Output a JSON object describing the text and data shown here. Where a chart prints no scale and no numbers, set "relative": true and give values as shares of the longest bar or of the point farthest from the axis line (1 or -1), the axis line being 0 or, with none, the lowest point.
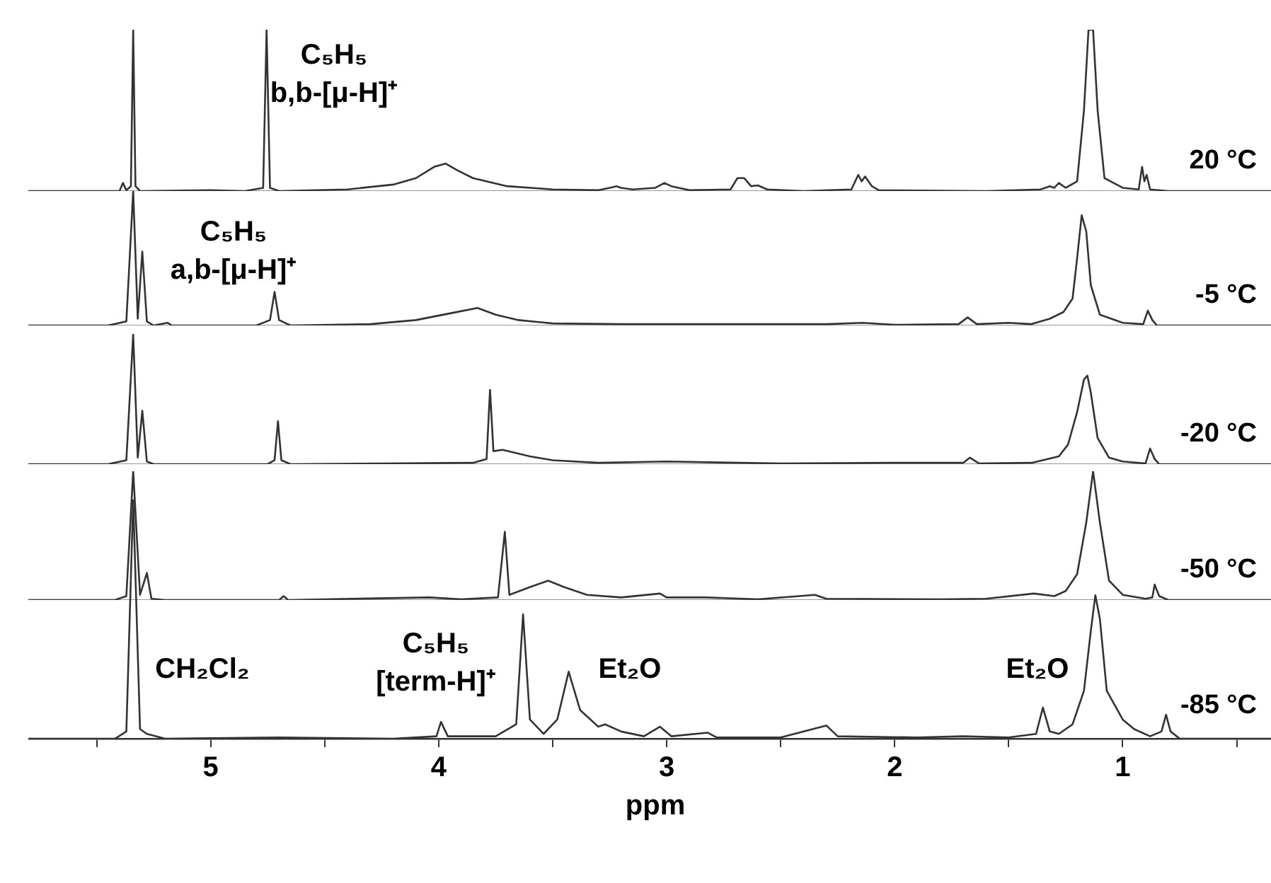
{
  "chart_data": [
    {
      "type": "line",
      "relative": true,
      "xlim": [
        5.8,
        0.3
      ],
      "tick_labels": false,
      "annotations": [
        "C₅H₅\nb,b-[μ-H]⁺"
      ],
      "x": [
        5.8,
        5.5,
        5.4,
        5.385,
        5.37,
        5.35,
        5.34,
        5.33,
        5.31,
        5.0,
        4.85,
        4.77,
        4.755,
        4.74,
        4.7,
        4.4,
        4.2,
        4.1,
        4.02,
        3.97,
        3.92,
        3.85,
        3.7,
        3.5,
        3.3,
        3.25,
        3.22,
        3.2,
        3.15,
        3.05,
        3.01,
        2.98,
        2.9,
        2.72,
        2.69,
        2.66,
        2.63,
        2.6,
        2.56,
        2.4,
        2.19,
        2.16,
        2.145,
        2.13,
        2.1,
        2.07,
        1.6,
        1.36,
        1.32,
        1.3,
        1.28,
        1.25,
        1.2,
        1.17,
        1.15,
        1.13,
        1.11,
        1.08,
        1.0,
        0.93,
        0.915,
        0.905,
        0.895,
        0.88,
        0.8,
        0.3
      ],
      "series": [
        {
          "name": "20 °C",
          "color": "#333333",
          "values": [
            0,
            0,
            0,
            0.05,
            0.005,
            0.03,
            1,
            0.03,
            0,
            0.005,
            0,
            0.02,
            1,
            0.02,
            0,
            0.01,
            0.04,
            0.08,
            0.15,
            0.17,
            0.13,
            0.08,
            0.03,
            0.01,
            0.005,
            0.02,
            0.03,
            0.02,
            0.01,
            0.02,
            0.05,
            0.03,
            0.005,
            0.01,
            0.08,
            0.08,
            0.03,
            0.035,
            0.01,
            0,
            0.01,
            0.1,
            0.06,
            0.09,
            0.03,
            0.005,
            0,
            0.01,
            0.03,
            0.02,
            0.05,
            0.02,
            0.06,
            0.5,
            1,
            1,
            0.5,
            0.08,
            0.02,
            0.01,
            0.15,
            0.06,
            0.1,
            0.01,
            0,
            0
          ]
        }
      ]
    },
    {
      "type": "line",
      "relative": true,
      "xlim": [
        5.8,
        0.3
      ],
      "tick_labels": false,
      "annotations": [
        "C₅H₅\na,b-[μ-H]⁺"
      ],
      "x": [
        5.8,
        5.45,
        5.37,
        5.34,
        5.32,
        5.3,
        5.28,
        5.25,
        5.19,
        5.17,
        4.8,
        4.74,
        4.72,
        4.7,
        4.65,
        4.3,
        4.1,
        3.95,
        3.83,
        3.75,
        3.65,
        3.5,
        3.2,
        2.8,
        2.3,
        2.14,
        2.0,
        1.72,
        1.68,
        1.64,
        1.5,
        1.4,
        1.32,
        1.26,
        1.22,
        1.2,
        1.18,
        1.16,
        1.14,
        1.1,
        1.0,
        0.91,
        0.89,
        0.87,
        0.85,
        0.3
      ],
      "series": [
        {
          "name": "-5 °C",
          "color": "#333333",
          "values": [
            0,
            0,
            0.03,
            1,
            0.05,
            0.55,
            0.03,
            0,
            0.02,
            0,
            0,
            0.04,
            0.25,
            0.04,
            0,
            0.01,
            0.04,
            0.09,
            0.13,
            0.08,
            0.04,
            0.015,
            0.01,
            0.01,
            0.01,
            0.02,
            0.005,
            0.01,
            0.06,
            0.01,
            0.02,
            0.01,
            0.05,
            0.1,
            0.2,
            0.5,
            0.82,
            0.7,
            0.3,
            0.08,
            0.02,
            0.01,
            0.11,
            0.04,
            0,
            0
          ]
        }
      ]
    },
    {
      "type": "line",
      "relative": true,
      "xlim": [
        5.8,
        0.3
      ],
      "tick_labels": false,
      "x": [
        5.8,
        5.45,
        5.37,
        5.34,
        5.32,
        5.3,
        5.28,
        5.25,
        4.75,
        4.72,
        4.705,
        4.69,
        4.65,
        3.85,
        3.79,
        3.775,
        3.76,
        3.72,
        3.6,
        3.5,
        3.3,
        3.0,
        2.5,
        2.0,
        1.7,
        1.67,
        1.63,
        1.4,
        1.28,
        1.24,
        1.2,
        1.17,
        1.155,
        1.14,
        1.11,
        1.06,
        1.0,
        0.9,
        0.88,
        0.86,
        0.84,
        0.3
      ],
      "series": [
        {
          "name": "-20 °C",
          "color": "#333333",
          "values": [
            0,
            0,
            0.03,
            1,
            0.05,
            0.41,
            0.02,
            0,
            0,
            0.03,
            0.33,
            0.03,
            0,
            0.01,
            0.04,
            0.57,
            0.1,
            0.11,
            0.06,
            0.03,
            0.01,
            0.02,
            0.005,
            0.01,
            0.01,
            0.05,
            0.005,
            0.01,
            0.06,
            0.15,
            0.4,
            0.65,
            0.68,
            0.55,
            0.2,
            0.05,
            0.02,
            0.005,
            0.12,
            0.04,
            0,
            0
          ]
        }
      ]
    },
    {
      "type": "line",
      "relative": true,
      "xlim": [
        5.8,
        0.3
      ],
      "tick_labels": false,
      "x": [
        5.8,
        5.42,
        5.37,
        5.34,
        5.31,
        5.28,
        5.26,
        5.2,
        4.7,
        4.68,
        4.66,
        4.04,
        3.9,
        3.74,
        3.71,
        3.69,
        3.6,
        3.52,
        3.45,
        3.35,
        3.2,
        3.03,
        3.0,
        2.83,
        2.6,
        2.35,
        2.3,
        1.8,
        1.6,
        1.39,
        1.3,
        1.25,
        1.2,
        1.16,
        1.13,
        1.1,
        1.06,
        1.0,
        0.9,
        0.87,
        0.86,
        0.84,
        0.8,
        0.3
      ],
      "series": [
        {
          "name": "-50 °C",
          "color": "#333333",
          "values": [
            0,
            0,
            0.03,
            1,
            0.04,
            0.21,
            0.01,
            0,
            0,
            0.03,
            0,
            0.02,
            0.005,
            0.02,
            0.53,
            0.04,
            0.1,
            0.15,
            0.1,
            0.04,
            0.02,
            0.05,
            0.02,
            0.02,
            0.005,
            0.04,
            0.01,
            0.005,
            0.01,
            0.05,
            0.03,
            0.07,
            0.2,
            0.6,
            1,
            0.6,
            0.15,
            0.04,
            0.01,
            0.02,
            0.12,
            0.03,
            0,
            0
          ]
        }
      ]
    },
    {
      "type": "line",
      "relative": true,
      "xlim": [
        5.8,
        0.3
      ],
      "tick_labels": "x",
      "xlabel": "ppm",
      "xticks": [
        {
          "value": 5.5,
          "label": null
        },
        5,
        {
          "value": 4.5,
          "label": null
        },
        4,
        {
          "value": 3.5,
          "label": null
        },
        3,
        {
          "value": 2.5,
          "label": null
        },
        2,
        {
          "value": 1.5,
          "label": null
        },
        1,
        {
          "value": 0.5,
          "label": null
        }
      ],
      "annotations": [
        "CH₂Cl₂",
        "C₅H₅\n[term-H]⁺",
        "Et₂O",
        "Et₂O"
      ],
      "x": [
        5.8,
        5.42,
        5.37,
        5.34,
        5.31,
        5.28,
        5.2,
        4.7,
        4.2,
        4.01,
        3.99,
        3.96,
        3.75,
        3.66,
        3.63,
        3.6,
        3.54,
        3.48,
        3.43,
        3.38,
        3.3,
        3.27,
        3.2,
        3.1,
        3.03,
        2.98,
        2.82,
        2.78,
        2.5,
        2.3,
        2.25,
        1.9,
        1.7,
        1.5,
        1.38,
        1.35,
        1.32,
        1.28,
        1.22,
        1.17,
        1.14,
        1.12,
        1.1,
        1.07,
        1.0,
        0.95,
        0.88,
        0.83,
        0.81,
        0.79,
        0.75,
        0.3
      ],
      "series": [
        {
          "name": "-85 °C",
          "color": "#333333",
          "values": [
            0,
            0,
            0.03,
            1,
            0.04,
            0.02,
            0,
            0.005,
            0,
            0.01,
            0.07,
            0.01,
            0.01,
            0.06,
            0.52,
            0.08,
            0.02,
            0.08,
            0.28,
            0.12,
            0.05,
            0.06,
            0.03,
            0.01,
            0.05,
            0.01,
            0.025,
            0.005,
            0.005,
            0.055,
            0.01,
            0.005,
            0.01,
            0.005,
            0.02,
            0.13,
            0.03,
            0.02,
            0.06,
            0.2,
            0.45,
            0.6,
            0.5,
            0.2,
            0.08,
            0.04,
            0.01,
            0.03,
            0.1,
            0.03,
            0,
            0
          ]
        }
      ]
    }
  ]
}
